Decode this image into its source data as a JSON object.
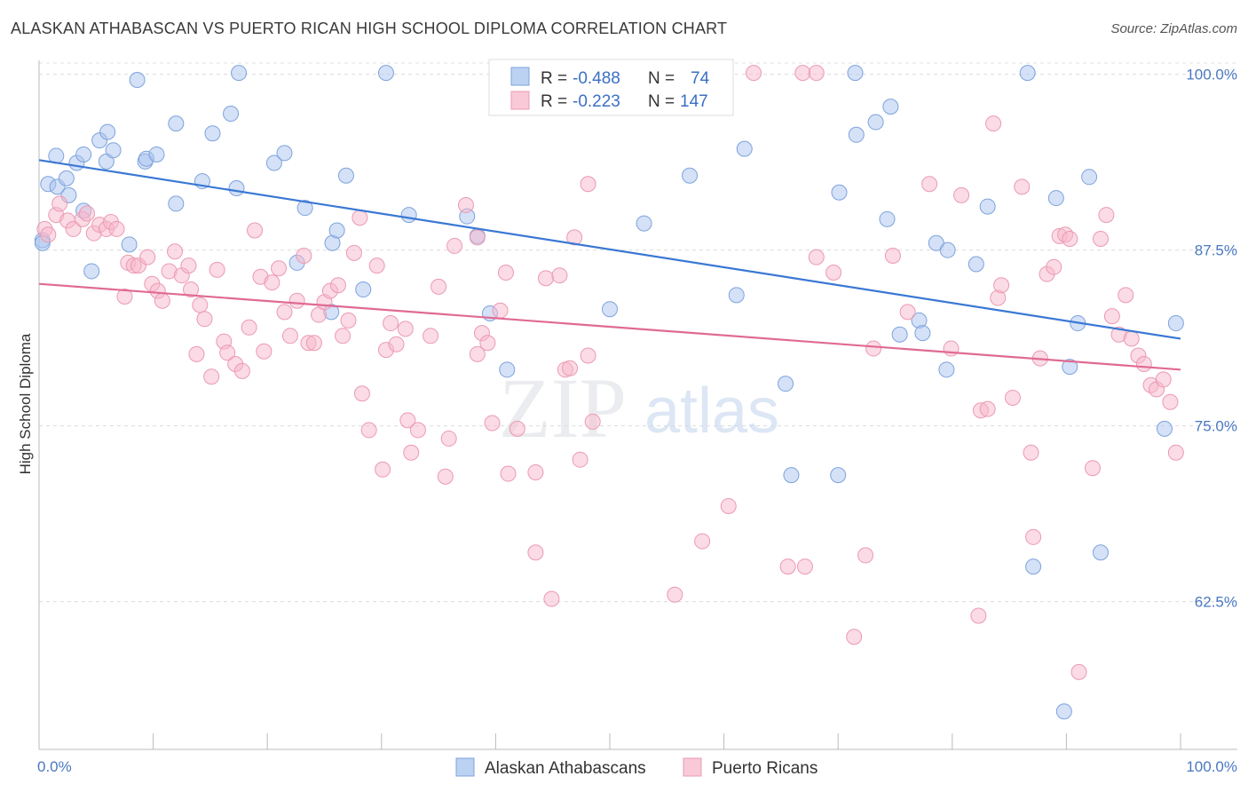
{
  "title": "ALASKAN ATHABASCAN VS PUERTO RICAN HIGH SCHOOL DIPLOMA CORRELATION CHART",
  "source": "Source: ZipAtlas.com",
  "watermark": {
    "zip": "ZIP",
    "atlas": "atlas"
  },
  "chart_data": {
    "type": "scatter",
    "ylabel": "High School Diploma",
    "xlabel": "",
    "xlim": [
      0,
      100
    ],
    "ylim": [
      52,
      102
    ],
    "x_tick_labels": [
      "0.0%",
      "100.0%"
    ],
    "y_ticks": [
      62.5,
      75.0,
      87.5,
      100.0
    ],
    "y_tick_labels": [
      "62.5%",
      "75.0%",
      "87.5%",
      "100.0%"
    ],
    "grid": true,
    "legend_position": "top-center",
    "series": [
      {
        "name": "Alaskan Athabascans",
        "color": "#a9c4ef",
        "line_color": "#3a78d4",
        "r_label": "R =",
        "r": "-0.488",
        "n_label": "N =",
        "n": "74",
        "trend": [
          [
            0,
            93.9
          ],
          [
            100,
            81.2
          ]
        ],
        "points": [
          [
            0.3,
            88.2
          ],
          [
            1.5,
            94.2
          ],
          [
            0.8,
            92.2
          ],
          [
            1.6,
            92.0
          ],
          [
            2.4,
            92.6
          ],
          [
            2.6,
            91.4
          ],
          [
            3.3,
            93.7
          ],
          [
            3.9,
            94.3
          ],
          [
            3.9,
            90.3
          ],
          [
            4.6,
            86.0
          ],
          [
            5.3,
            95.3
          ],
          [
            5.9,
            93.8
          ],
          [
            6.0,
            95.9
          ],
          [
            6.5,
            94.6
          ],
          [
            7.9,
            87.9
          ],
          [
            8.6,
            99.6
          ],
          [
            9.3,
            93.8
          ],
          [
            9.4,
            94.0
          ],
          [
            10.3,
            94.3
          ],
          [
            12.0,
            96.5
          ],
          [
            12.0,
            90.8
          ],
          [
            14.3,
            92.4
          ],
          [
            15.2,
            95.8
          ],
          [
            16.8,
            97.2
          ],
          [
            17.3,
            91.9
          ],
          [
            17.5,
            100.1
          ],
          [
            20.6,
            93.7
          ],
          [
            21.5,
            94.4
          ],
          [
            22.6,
            86.6
          ],
          [
            23.3,
            90.5
          ],
          [
            25.6,
            83.1
          ],
          [
            25.7,
            88.0
          ],
          [
            26.1,
            88.9
          ],
          [
            26.9,
            92.8
          ],
          [
            28.4,
            84.7
          ],
          [
            30.4,
            100.1
          ],
          [
            32.4,
            90.0
          ],
          [
            37.5,
            89.9
          ],
          [
            38.4,
            88.5
          ],
          [
            39.5,
            83.0
          ],
          [
            41.0,
            79.0
          ],
          [
            50.0,
            83.3
          ],
          [
            53.0,
            89.4
          ],
          [
            57.0,
            92.8
          ],
          [
            61.1,
            84.3
          ],
          [
            61.8,
            94.7
          ],
          [
            65.4,
            78.0
          ],
          [
            65.9,
            71.5
          ],
          [
            70.0,
            71.5
          ],
          [
            70.1,
            91.6
          ],
          [
            71.5,
            100.1
          ],
          [
            71.6,
            95.7
          ],
          [
            73.3,
            96.6
          ],
          [
            74.3,
            89.7
          ],
          [
            74.6,
            97.7
          ],
          [
            75.4,
            81.5
          ],
          [
            77.1,
            82.5
          ],
          [
            77.4,
            81.6
          ],
          [
            78.6,
            88.0
          ],
          [
            79.5,
            79.0
          ],
          [
            79.6,
            87.5
          ],
          [
            82.1,
            86.5
          ],
          [
            83.1,
            90.6
          ],
          [
            86.6,
            100.1
          ],
          [
            87.1,
            65.0
          ],
          [
            89.1,
            91.2
          ],
          [
            89.8,
            54.7
          ],
          [
            90.3,
            79.2
          ],
          [
            91.0,
            82.3
          ],
          [
            92.0,
            92.7
          ],
          [
            93.0,
            66.0
          ],
          [
            98.6,
            74.8
          ],
          [
            99.6,
            82.3
          ],
          [
            0.3,
            88.0
          ]
        ]
      },
      {
        "name": "Puerto Ricans",
        "color": "#f7b8cb",
        "line_color": "#e06a93",
        "r_label": "R =",
        "r": "-0.223",
        "n_label": "N =",
        "n": "147",
        "trend": [
          [
            0,
            85.1
          ],
          [
            100,
            79.0
          ]
        ],
        "points": [
          [
            0.5,
            89.0
          ],
          [
            0.8,
            88.6
          ],
          [
            1.5,
            90.0
          ],
          [
            1.8,
            90.8
          ],
          [
            2.5,
            89.6
          ],
          [
            3.0,
            89.0
          ],
          [
            3.8,
            89.7
          ],
          [
            4.2,
            90.1
          ],
          [
            4.8,
            88.7
          ],
          [
            5.3,
            89.3
          ],
          [
            5.9,
            89.0
          ],
          [
            6.3,
            89.5
          ],
          [
            6.8,
            89.0
          ],
          [
            7.5,
            84.2
          ],
          [
            7.8,
            86.6
          ],
          [
            8.3,
            86.4
          ],
          [
            8.7,
            86.4
          ],
          [
            9.5,
            87.0
          ],
          [
            9.9,
            85.1
          ],
          [
            10.4,
            84.6
          ],
          [
            10.8,
            83.9
          ],
          [
            11.4,
            86.0
          ],
          [
            11.9,
            87.4
          ],
          [
            12.5,
            85.7
          ],
          [
            13.1,
            86.4
          ],
          [
            13.3,
            84.7
          ],
          [
            13.8,
            80.1
          ],
          [
            14.1,
            83.6
          ],
          [
            14.5,
            82.6
          ],
          [
            15.1,
            78.5
          ],
          [
            15.6,
            86.1
          ],
          [
            16.2,
            81.0
          ],
          [
            16.5,
            80.2
          ],
          [
            17.2,
            79.4
          ],
          [
            17.8,
            78.9
          ],
          [
            18.4,
            82.0
          ],
          [
            18.9,
            88.9
          ],
          [
            19.4,
            85.6
          ],
          [
            19.7,
            80.3
          ],
          [
            20.4,
            85.2
          ],
          [
            21.0,
            86.2
          ],
          [
            21.5,
            83.1
          ],
          [
            22.0,
            81.4
          ],
          [
            22.6,
            83.9
          ],
          [
            23.2,
            87.1
          ],
          [
            23.6,
            80.9
          ],
          [
            24.1,
            80.9
          ],
          [
            24.5,
            82.9
          ],
          [
            25.0,
            83.8
          ],
          [
            25.5,
            84.6
          ],
          [
            26.2,
            85.0
          ],
          [
            26.6,
            81.4
          ],
          [
            27.1,
            82.5
          ],
          [
            27.6,
            87.3
          ],
          [
            28.1,
            89.8
          ],
          [
            28.3,
            77.3
          ],
          [
            28.9,
            74.7
          ],
          [
            29.6,
            86.4
          ],
          [
            30.1,
            71.9
          ],
          [
            30.4,
            80.4
          ],
          [
            30.8,
            82.3
          ],
          [
            31.3,
            80.8
          ],
          [
            32.1,
            81.9
          ],
          [
            32.3,
            75.4
          ],
          [
            32.6,
            73.1
          ],
          [
            33.2,
            74.7
          ],
          [
            34.3,
            81.4
          ],
          [
            35.0,
            84.9
          ],
          [
            35.6,
            71.4
          ],
          [
            35.9,
            74.1
          ],
          [
            36.4,
            87.8
          ],
          [
            37.4,
            90.7
          ],
          [
            38.4,
            80.1
          ],
          [
            38.8,
            81.6
          ],
          [
            39.3,
            80.9
          ],
          [
            39.7,
            75.2
          ],
          [
            40.4,
            83.2
          ],
          [
            40.9,
            85.9
          ],
          [
            41.1,
            71.6
          ],
          [
            41.9,
            74.8
          ],
          [
            43.5,
            66.0
          ],
          [
            43.5,
            71.7
          ],
          [
            44.4,
            85.5
          ],
          [
            44.9,
            62.7
          ],
          [
            45.6,
            85.7
          ],
          [
            46.1,
            79.0
          ],
          [
            46.5,
            79.1
          ],
          [
            46.9,
            88.4
          ],
          [
            47.4,
            72.6
          ],
          [
            48.1,
            80.0
          ],
          [
            48.1,
            92.2
          ],
          [
            48.5,
            75.3
          ],
          [
            55.7,
            63.0
          ],
          [
            58.1,
            66.8
          ],
          [
            60.4,
            69.3
          ],
          [
            62.6,
            100.1
          ],
          [
            65.6,
            65.0
          ],
          [
            66.9,
            100.1
          ],
          [
            67.1,
            65.0
          ],
          [
            68.1,
            100.1
          ],
          [
            68.1,
            87.0
          ],
          [
            69.6,
            85.9
          ],
          [
            71.4,
            60.0
          ],
          [
            72.4,
            65.8
          ],
          [
            73.1,
            80.5
          ],
          [
            74.8,
            87.1
          ],
          [
            76.1,
            83.1
          ],
          [
            78.0,
            92.2
          ],
          [
            79.9,
            80.5
          ],
          [
            80.8,
            91.4
          ],
          [
            82.3,
            61.5
          ],
          [
            82.5,
            76.1
          ],
          [
            83.1,
            76.2
          ],
          [
            83.6,
            96.5
          ],
          [
            84.0,
            84.1
          ],
          [
            84.3,
            85.0
          ],
          [
            85.3,
            77.0
          ],
          [
            86.1,
            92.0
          ],
          [
            86.9,
            73.1
          ],
          [
            87.1,
            67.1
          ],
          [
            87.7,
            79.8
          ],
          [
            88.3,
            85.8
          ],
          [
            88.9,
            86.3
          ],
          [
            89.4,
            88.5
          ],
          [
            89.9,
            88.6
          ],
          [
            90.3,
            88.3
          ],
          [
            91.1,
            57.5
          ],
          [
            92.3,
            72.0
          ],
          [
            93.0,
            88.3
          ],
          [
            93.5,
            90.0
          ],
          [
            94.0,
            82.8
          ],
          [
            94.6,
            81.5
          ],
          [
            95.2,
            84.3
          ],
          [
            95.7,
            81.2
          ],
          [
            96.3,
            80.0
          ],
          [
            96.8,
            79.4
          ],
          [
            97.4,
            77.9
          ],
          [
            97.9,
            77.6
          ],
          [
            98.5,
            78.3
          ],
          [
            99.1,
            76.7
          ],
          [
            99.6,
            73.1
          ],
          [
            38.4,
            88.4
          ],
          [
            45.6,
            99.9
          ],
          [
            49.4,
            99.9
          ],
          [
            50.4,
            99.9
          ]
        ]
      }
    ]
  }
}
